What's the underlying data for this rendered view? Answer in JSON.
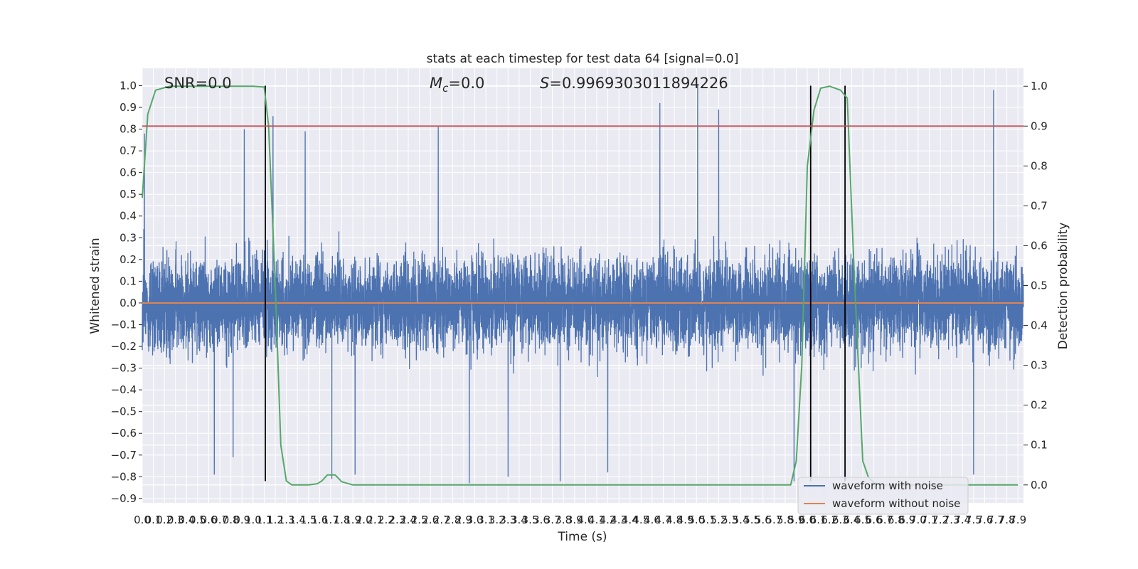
{
  "chart_data": {
    "type": "line",
    "title": "stats at each timestep for test data 64 [signal=0.0]",
    "xlabel": "Time (s)",
    "ylabel": "Whitened strain",
    "y2label": "Detection probability",
    "xlim": [
      0.0,
      7.95
    ],
    "ylim": [
      -0.92,
      1.08
    ],
    "y2lim": [
      -0.045,
      1.045
    ],
    "x_tick_step": 0.1,
    "x_ticks_count": 80,
    "y_ticks": [
      -0.9,
      -0.8,
      -0.7,
      -0.6,
      -0.5,
      -0.4,
      -0.3,
      -0.2,
      -0.1,
      0.0,
      0.1,
      0.2,
      0.3,
      0.4,
      0.5,
      0.6,
      0.7,
      0.8,
      0.9,
      1.0
    ],
    "y_tick_labels": [
      "−0.9",
      "−0.8",
      "−0.7",
      "−0.6",
      "−0.5",
      "−0.4",
      "−0.3",
      "−0.2",
      "−0.1",
      "0.0",
      "0.1",
      "0.2",
      "0.3",
      "0.4",
      "0.5",
      "0.6",
      "0.7",
      "0.8",
      "0.9",
      "1.0"
    ],
    "y2_ticks": [
      0.0,
      0.1,
      0.2,
      0.3,
      0.4,
      0.5,
      0.6,
      0.7,
      0.8,
      0.9,
      1.0
    ],
    "y2_tick_labels": [
      "0.0",
      "0.1",
      "0.2",
      "0.3",
      "0.4",
      "0.5",
      "0.6",
      "0.7",
      "0.8",
      "0.9",
      "1.0"
    ],
    "grid": true,
    "legend": {
      "placement": "lower-right",
      "entries": [
        "waveform with noise",
        "waveform without noise"
      ]
    },
    "annotations": {
      "snr": "SNR=0.0",
      "mc_symbol": "M",
      "mc_sub": "c",
      "mc_value": "=0.0",
      "s_symbol": "S",
      "s_value": "=0.9969303011894226"
    },
    "series": [
      {
        "name": "waveform with noise",
        "axis": "left",
        "color": "#4c72b0",
        "kind": "noise",
        "samples": 8000,
        "typical_envelope": [
          -0.28,
          0.27
        ],
        "spikes_up": [
          [
            0.02,
            0.78
          ],
          [
            1.18,
            0.86
          ],
          [
            0.92,
            0.8
          ],
          [
            1.47,
            0.79
          ],
          [
            2.67,
            0.81
          ],
          [
            4.67,
            0.92
          ],
          [
            5.01,
            1.0
          ],
          [
            5.2,
            0.89
          ],
          [
            7.68,
            0.98
          ]
        ],
        "spikes_down": [
          [
            0.65,
            -0.79
          ],
          [
            0.82,
            -0.71
          ],
          [
            1.71,
            -0.81
          ],
          [
            1.92,
            -0.79
          ],
          [
            2.95,
            -0.83
          ],
          [
            3.3,
            -0.8
          ],
          [
            3.77,
            -0.82
          ],
          [
            4.2,
            -0.78
          ],
          [
            5.88,
            -0.82
          ],
          [
            7.5,
            -0.79
          ]
        ]
      },
      {
        "name": "waveform without noise",
        "axis": "left",
        "color": "#dd8452",
        "x": [
          0.0,
          7.95
        ],
        "y": [
          0.0,
          0.0
        ]
      },
      {
        "name": "",
        "axis": "right",
        "color": "#55a868",
        "x": [
          0.0,
          0.05,
          0.12,
          0.25,
          0.5,
          1.0,
          1.1,
          1.14,
          1.2,
          1.25,
          1.3,
          1.35,
          1.42,
          1.5,
          1.58,
          1.62,
          1.67,
          1.74,
          1.8,
          1.9,
          2.0,
          5.85,
          5.9,
          5.95,
          6.0,
          6.06,
          6.12,
          6.2,
          6.3,
          6.36,
          6.42,
          6.5,
          6.55,
          6.6,
          6.7,
          7.9
        ],
        "y": [
          0.72,
          0.93,
          0.99,
          1.0,
          1.0,
          1.0,
          0.998,
          0.9,
          0.5,
          0.1,
          0.01,
          0.0,
          0.0,
          0.0,
          0.003,
          0.01,
          0.025,
          0.025,
          0.008,
          0.0,
          0.0,
          0.0,
          0.06,
          0.3,
          0.8,
          0.94,
          0.995,
          1.0,
          0.99,
          0.97,
          0.55,
          0.06,
          0.02,
          0.005,
          0.0,
          0.0
        ]
      },
      {
        "name": "",
        "axis": "right",
        "color": "#c44e52",
        "x": [
          0.0,
          7.95
        ],
        "y": [
          0.9,
          0.9
        ]
      }
    ],
    "vertical_markers": [
      {
        "x": 1.11,
        "y_top": 1.0,
        "y_bottom": -0.82
      },
      {
        "x": 6.03,
        "y_top": 1.0,
        "y_bottom": -0.82
      },
      {
        "x": 6.34,
        "y_top": 1.0,
        "y_bottom": -0.82
      }
    ]
  }
}
